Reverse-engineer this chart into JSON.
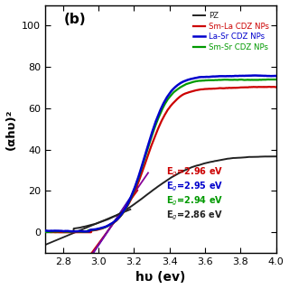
{
  "title_label": "(b)",
  "xlabel": "hυ (ev)",
  "ylabel": "(αhυ)²",
  "xlim": [
    2.7,
    4.0
  ],
  "ylim": [
    -10,
    110
  ],
  "yticks": [
    0,
    20,
    40,
    60,
    80,
    100
  ],
  "xticks": [
    2.8,
    3.0,
    3.2,
    3.4,
    3.6,
    3.8,
    4.0
  ],
  "bg_color": "#ffffff",
  "legend_entries": [
    "PZ",
    "Sm-La CDZ NPs",
    "La-Sr CDZ NPs",
    "Sm-Sr CDZ NPs"
  ],
  "legend_colors": [
    "#222222",
    "#cc0000",
    "#0000cc",
    "#009900"
  ],
  "eg_labels": [
    "E$_g$=2.96 eV",
    "E$_g$=2.95 eV",
    "E$_g$=2.94 eV",
    "E$_g$=2.86 eV"
  ],
  "eg_colors": [
    "#cc0000",
    "#0000cc",
    "#009900",
    "#222222"
  ],
  "tangent_colors": [
    "#222222",
    "#cc0000",
    "#0000cc",
    "#880099"
  ]
}
